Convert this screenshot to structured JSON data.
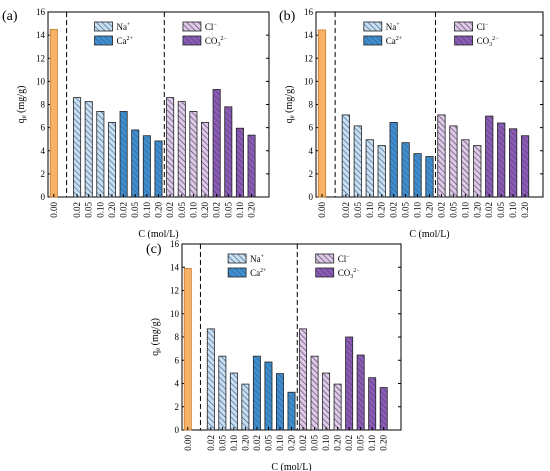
{
  "colors": {
    "control": "#f7b267",
    "control_stroke": "#c77b2e",
    "Na": "#c9dff0",
    "Ca": "#3e8fd0",
    "Cl": "#dccbe3",
    "CO3": "#8a5cb5",
    "edge": "#222222",
    "hatch": "#3b5f8f",
    "hatch_purple": "#5a3c7a"
  },
  "chart_data": [
    {
      "type": "bar",
      "panel_label": "(a)",
      "xlabel": "C (mol/L)",
      "ylabel_main": "q",
      "ylabel_sub": "e",
      "ylabel_unit": "(mg/g)",
      "ylim": [
        0,
        16
      ],
      "yticks": [
        "0",
        "2",
        "4",
        "6",
        "8",
        "10",
        "12",
        "14",
        "16"
      ],
      "control": {
        "label": "0.00",
        "value": 14.5
      },
      "groups": [
        {
          "ion": "Na",
          "legend": "Na",
          "sup": "+",
          "sub": "",
          "labels": [
            "0.02",
            "0.05",
            "0.10",
            "0.20"
          ],
          "values": [
            8.6,
            8.25,
            7.4,
            6.45
          ]
        },
        {
          "ion": "Ca",
          "legend": "Ca",
          "sup": "2+",
          "sub": "",
          "labels": [
            "0.02",
            "0.05",
            "0.10",
            "0.20"
          ],
          "values": [
            7.4,
            5.8,
            5.3,
            4.85
          ]
        },
        {
          "ion": "Cl",
          "legend": "Cl",
          "sup": "−",
          "sub": "",
          "labels": [
            "0.02",
            "0.05",
            "0.10",
            "0.20"
          ],
          "values": [
            8.6,
            8.25,
            7.4,
            6.45
          ]
        },
        {
          "ion": "CO3",
          "legend": "CO",
          "sup": "2−",
          "sub": "3",
          "labels": [
            "0.02",
            "0.05",
            "0.10",
            "0.20"
          ],
          "values": [
            9.3,
            7.8,
            5.95,
            5.35
          ]
        }
      ]
    },
    {
      "type": "bar",
      "panel_label": "(b)",
      "xlabel": "C (mol/L)",
      "ylabel_main": "q",
      "ylabel_sub": "e",
      "ylabel_unit": "(mg/g)",
      "ylim": [
        0,
        16
      ],
      "yticks": [
        "0",
        "2",
        "4",
        "6",
        "8",
        "10",
        "12",
        "14",
        "16"
      ],
      "control": {
        "label": "0.00",
        "value": 14.45
      },
      "groups": [
        {
          "ion": "Na",
          "legend": "Na",
          "sup": "+",
          "sub": "",
          "labels": [
            "0.02",
            "0.05",
            "0.10",
            "0.20"
          ],
          "values": [
            7.1,
            6.15,
            4.95,
            4.45
          ]
        },
        {
          "ion": "Ca",
          "legend": "Ca",
          "sup": "2+",
          "sub": "",
          "labels": [
            "0.02",
            "0.05",
            "0.10",
            "0.20"
          ],
          "values": [
            6.45,
            4.7,
            3.75,
            3.5
          ]
        },
        {
          "ion": "Cl",
          "legend": "Cl",
          "sup": "−",
          "sub": "",
          "labels": [
            "0.02",
            "0.05",
            "0.10",
            "0.20"
          ],
          "values": [
            7.1,
            6.15,
            4.95,
            4.45
          ]
        },
        {
          "ion": "CO3",
          "legend": "CO",
          "sup": "2−",
          "sub": "3",
          "labels": [
            "0.02",
            "0.05",
            "0.10",
            "0.20"
          ],
          "values": [
            7.0,
            6.4,
            5.9,
            5.3
          ]
        }
      ]
    },
    {
      "type": "bar",
      "panel_label": "(c)",
      "xlabel": "C (mol/L)",
      "ylabel_main": "q",
      "ylabel_sub": "e",
      "ylabel_unit": "(mg/g)",
      "ylim": [
        0,
        16
      ],
      "yticks": [
        "0",
        "2",
        "4",
        "6",
        "8",
        "10",
        "12",
        "14",
        "16"
      ],
      "control": {
        "label": "0.00",
        "value": 13.9
      },
      "groups": [
        {
          "ion": "Na",
          "legend": "Na",
          "sup": "+",
          "sub": "",
          "labels": [
            "0.02",
            "0.05",
            "0.10",
            "0.20"
          ],
          "values": [
            8.7,
            6.35,
            4.9,
            3.95
          ]
        },
        {
          "ion": "Ca",
          "legend": "Ca",
          "sup": "2+",
          "sub": "",
          "labels": [
            "0.02",
            "0.05",
            "0.10",
            "0.20"
          ],
          "values": [
            6.35,
            5.85,
            4.85,
            3.25
          ]
        },
        {
          "ion": "Cl",
          "legend": "Cl",
          "sup": "−",
          "sub": "",
          "labels": [
            "0.02",
            "0.05",
            "0.10",
            "0.20"
          ],
          "values": [
            8.7,
            6.35,
            4.9,
            3.95
          ]
        },
        {
          "ion": "CO3",
          "legend": "CO",
          "sup": "2−",
          "sub": "3",
          "labels": [
            "0.02",
            "0.05",
            "0.10",
            "0.20"
          ],
          "values": [
            8.0,
            6.45,
            4.5,
            3.65
          ]
        }
      ]
    }
  ]
}
